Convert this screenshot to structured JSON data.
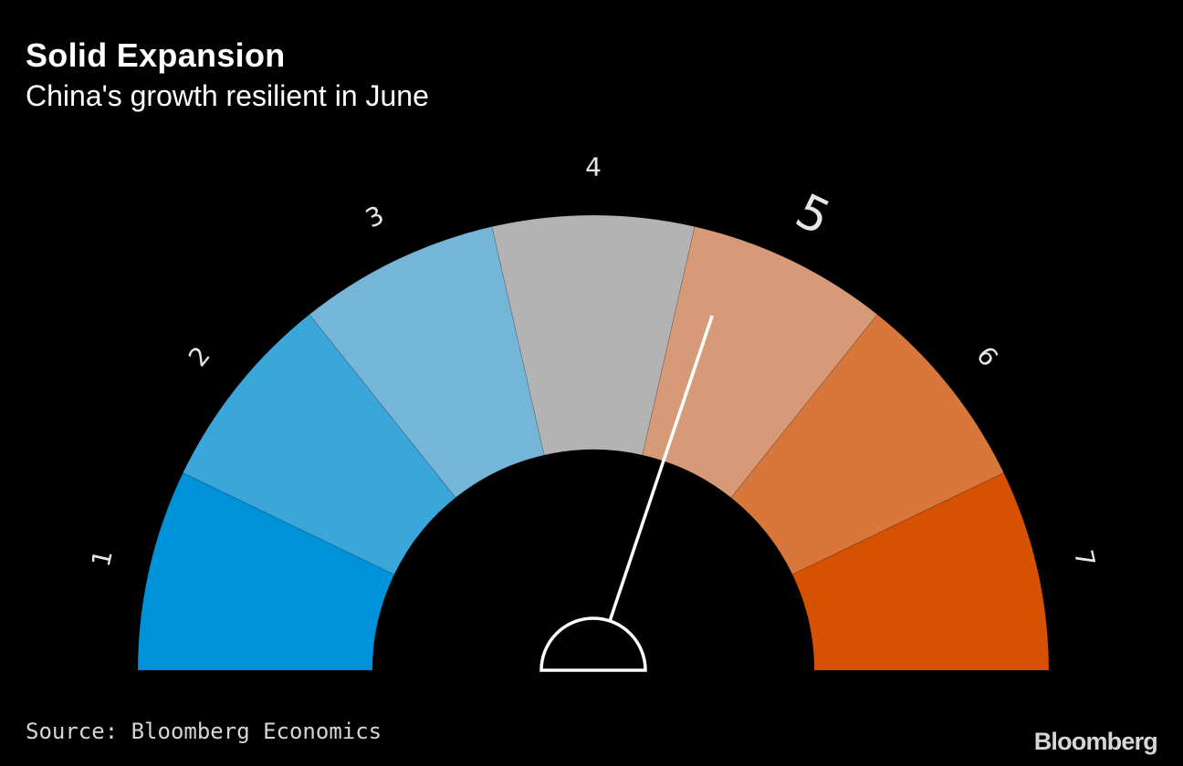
{
  "title": "Solid Expansion",
  "subtitle": "China's growth resilient in June",
  "source": "Source: Bloomberg Economics",
  "brand": "Bloomberg",
  "chart_data": {
    "type": "gauge",
    "title": "Solid Expansion",
    "subtitle": "China's growth resilient in June",
    "categories": [
      "1",
      "2",
      "3",
      "4",
      "5",
      "6",
      "7"
    ],
    "segment_colors": [
      "#0092d9",
      "#3aa6d9",
      "#74b5d8",
      "#b3b3b3",
      "#d79a78",
      "#d8763c",
      "#d75102"
    ],
    "highlighted_category": "5",
    "value": 4.72,
    "range": [
      0.5,
      7.5
    ]
  },
  "colors": {
    "background": "#000000",
    "needle": "#ffffff",
    "text": "#ffffff",
    "muted_text": "#d6d6d6"
  }
}
